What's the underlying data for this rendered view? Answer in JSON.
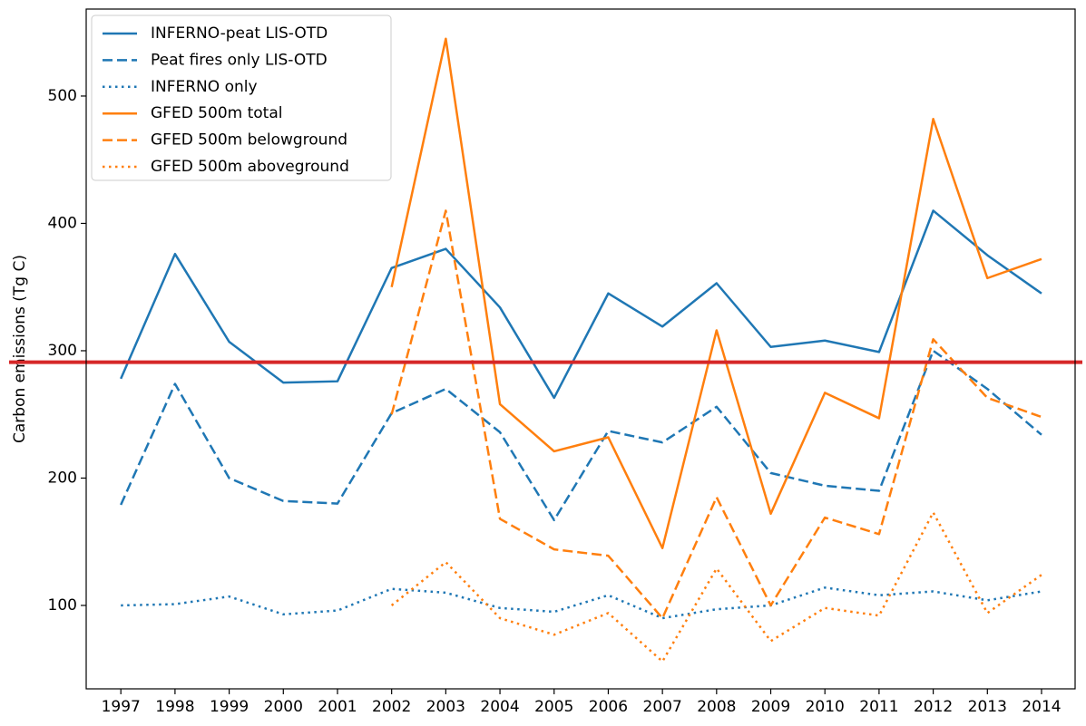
{
  "chart_data": {
    "type": "line",
    "ylabel": "Carbon emissions (Tg C)",
    "x": [
      1997,
      1998,
      1999,
      2000,
      2001,
      2002,
      2003,
      2004,
      2005,
      2006,
      2007,
      2008,
      2009,
      2010,
      2011,
      2012,
      2013,
      2014
    ],
    "xlim": [
      1996.36,
      2014.62
    ],
    "xticks": [
      1997,
      1998,
      1999,
      2000,
      2001,
      2002,
      2003,
      2004,
      2005,
      2006,
      2007,
      2008,
      2009,
      2010,
      2011,
      2012,
      2013,
      2014
    ],
    "ylim": [
      34.5,
      568.3
    ],
    "yticks": [
      100,
      200,
      300,
      400,
      500
    ],
    "grid": false,
    "legend": "upper left",
    "hline": {
      "value": 291,
      "color": "#d62728"
    },
    "series": [
      {
        "name": "INFERNO-peat LIS-OTD",
        "color": "#1f77b4",
        "style": "solid",
        "values": [
          278,
          376,
          307,
          275,
          276,
          365,
          380,
          334,
          263,
          345,
          319,
          353,
          303,
          308,
          299,
          410,
          375,
          345
        ]
      },
      {
        "name": "Peat fires only LIS-OTD",
        "color": "#1f77b4",
        "style": "dashed",
        "values": [
          179,
          274,
          200,
          182,
          180,
          251,
          270,
          236,
          167,
          237,
          228,
          256,
          204,
          194,
          190,
          300,
          270,
          234
        ]
      },
      {
        "name": "INFERNO only",
        "color": "#1f77b4",
        "style": "dotted",
        "values": [
          100,
          101,
          107,
          93,
          96,
          113,
          110,
          98,
          95,
          108,
          90,
          97,
          100,
          114,
          108,
          111,
          104,
          111
        ]
      },
      {
        "name": "GFED 500m total",
        "color": "#ff7f0e",
        "style": "solid",
        "values": [
          null,
          null,
          null,
          null,
          null,
          350,
          545,
          258,
          221,
          232,
          145,
          316,
          172,
          267,
          247,
          482,
          357,
          372
        ]
      },
      {
        "name": "GFED 500m belowground",
        "color": "#ff7f0e",
        "style": "dashed",
        "values": [
          null,
          null,
          null,
          null,
          null,
          250,
          410,
          168,
          144,
          139,
          90,
          185,
          100,
          169,
          156,
          309,
          263,
          248
        ]
      },
      {
        "name": "GFED 500m aboveground",
        "color": "#ff7f0e",
        "style": "dotted",
        "values": [
          null,
          null,
          null,
          null,
          null,
          100,
          134,
          90,
          77,
          94,
          56,
          129,
          72,
          98,
          92,
          173,
          94,
          124
        ]
      }
    ]
  }
}
